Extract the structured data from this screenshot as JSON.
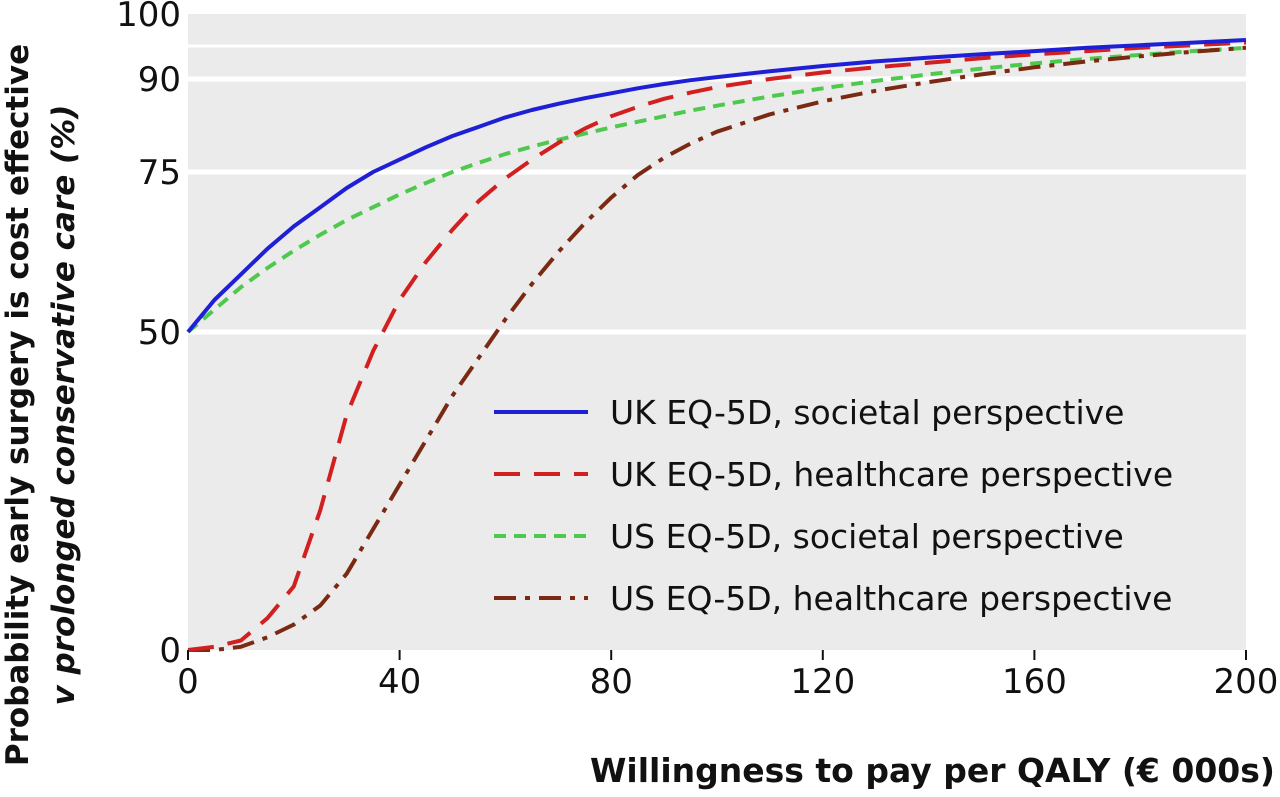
{
  "chart_data": {
    "type": "line",
    "title": "",
    "xlabel": "Willingness to pay per QALY (€ 000s)",
    "ylabel_line1": "Probability early surgery is cost effective",
    "ylabel_line2": "v prolonged conservative care (%)",
    "xlim": [
      0,
      200
    ],
    "ylim": [
      0,
      100
    ],
    "xticks": [
      0,
      40,
      80,
      120,
      160,
      200
    ],
    "yticks": [
      0,
      50,
      75,
      90,
      100
    ],
    "grid": "horizontal",
    "legend_position": "lower-right",
    "x": [
      0,
      5,
      10,
      15,
      20,
      25,
      30,
      35,
      40,
      45,
      50,
      55,
      60,
      65,
      70,
      75,
      80,
      85,
      90,
      95,
      100,
      110,
      120,
      130,
      140,
      150,
      160,
      170,
      180,
      190,
      200
    ],
    "series": [
      {
        "name": "UK EQ-5D, societal perspective",
        "color": "#1f1fd6",
        "style": "solid",
        "values": [
          50,
          55,
          59,
          63,
          66.5,
          69.5,
          72.5,
          75,
          77,
          79,
          80.8,
          82.3,
          83.8,
          85,
          86,
          86.9,
          87.7,
          88.5,
          89.2,
          89.8,
          90.3,
          91.2,
          92,
          92.7,
          93.3,
          93.8,
          94.3,
          94.8,
          95.2,
          95.6,
          96
        ]
      },
      {
        "name": "UK EQ-5D, healthcare perspective",
        "color": "#d21f1f",
        "style": "dashed",
        "values": [
          0,
          0.5,
          1.5,
          5,
          10,
          22,
          37,
          47,
          55,
          61,
          66,
          70.5,
          74,
          77,
          79.7,
          82,
          84,
          85.5,
          86.8,
          87.8,
          88.7,
          90,
          91,
          91.8,
          92.5,
          93.2,
          93.8,
          94.3,
          94.8,
          95.2,
          95.6
        ]
      },
      {
        "name": "US EQ-5D, societal perspective",
        "color": "#4ec94e",
        "style": "short-dashed",
        "values": [
          50,
          53.5,
          57,
          60,
          62.7,
          65.2,
          67.5,
          69.5,
          71.5,
          73.3,
          75,
          76.5,
          77.9,
          79.1,
          80.2,
          81.2,
          82.2,
          83.1,
          84,
          84.9,
          85.7,
          87.2,
          88.5,
          89.7,
          90.7,
          91.6,
          92.4,
          93.1,
          93.7,
          94.3,
          94.8
        ]
      },
      {
        "name": "US EQ-5D, healthcare perspective",
        "color": "#7a2a12",
        "style": "dash-dot",
        "values": [
          0,
          0,
          0.5,
          2,
          4,
          7,
          12,
          19,
          26,
          33,
          40,
          46,
          52,
          57.5,
          62.5,
          67,
          71,
          74.5,
          77.3,
          79.6,
          81.5,
          84.3,
          86.4,
          88.1,
          89.5,
          90.7,
          91.8,
          92.7,
          93.5,
          94.2,
          94.8
        ]
      }
    ]
  }
}
